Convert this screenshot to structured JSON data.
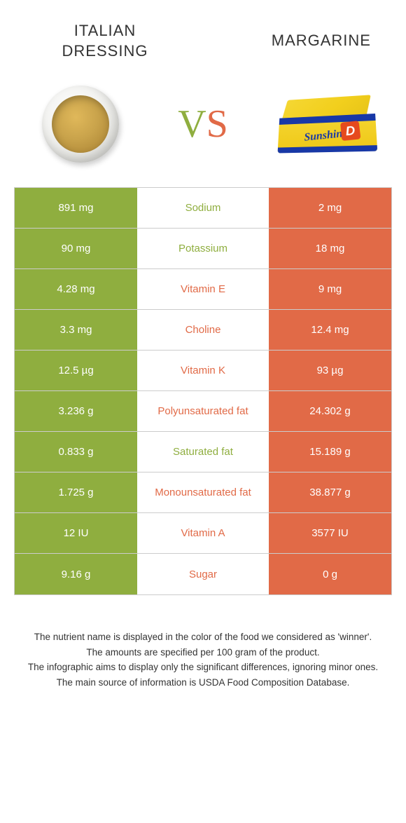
{
  "header": {
    "left_title": "ITALIAN DRESSING",
    "right_title": "MARGARINE",
    "vs": "VS"
  },
  "colors": {
    "green": "#8fae3f",
    "orange": "#e16a47",
    "background": "#ffffff",
    "border": "#cccccc",
    "text": "#333333"
  },
  "table": {
    "rows": [
      {
        "left": "891 mg",
        "label": "Sodium",
        "winner": "green",
        "right": "2 mg"
      },
      {
        "left": "90 mg",
        "label": "Potassium",
        "winner": "green",
        "right": "18 mg"
      },
      {
        "left": "4.28 mg",
        "label": "Vitamin E",
        "winner": "orange",
        "right": "9 mg"
      },
      {
        "left": "3.3 mg",
        "label": "Choline",
        "winner": "orange",
        "right": "12.4 mg"
      },
      {
        "left": "12.5 µg",
        "label": "Vitamin K",
        "winner": "orange",
        "right": "93 µg"
      },
      {
        "left": "3.236 g",
        "label": "Polyunsaturated fat",
        "winner": "orange",
        "right": "24.302 g"
      },
      {
        "left": "0.833 g",
        "label": "Saturated fat",
        "winner": "green",
        "right": "15.189 g"
      },
      {
        "left": "1.725 g",
        "label": "Monounsaturated fat",
        "winner": "orange",
        "right": "38.877 g"
      },
      {
        "left": "12 IU",
        "label": "Vitamin A",
        "winner": "orange",
        "right": "3577 IU"
      },
      {
        "left": "9.16 g",
        "label": "Sugar",
        "winner": "orange",
        "right": "0 g"
      }
    ]
  },
  "notes": [
    "The nutrient name is displayed in the color of the food we considered as 'winner'.",
    "The amounts are specified per 100 gram of the product.",
    "The infographic aims to display only the significant differences, ignoring minor ones.",
    "The main source of information is USDA Food Composition Database."
  ],
  "margarine_brand": "Sunshine",
  "margarine_letter": "D"
}
